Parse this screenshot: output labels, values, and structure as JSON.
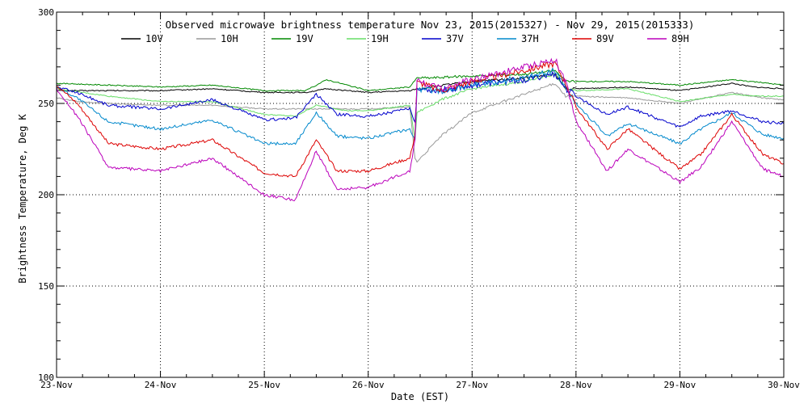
{
  "chart_data": {
    "type": "line",
    "title": "Observed microwave brightness temperature Nov 23, 2015(2015327) - Nov 29, 2015(2015333)",
    "xlabel": "Date (EST)",
    "ylabel": "Brightness Temperature, Deg K",
    "x_ticks": [
      "23-Nov",
      "24-Nov",
      "25-Nov",
      "26-Nov",
      "27-Nov",
      "28-Nov",
      "29-Nov",
      "30-Nov"
    ],
    "y_ticks": [
      100,
      150,
      200,
      250,
      300
    ],
    "xlim": [
      0,
      7
    ],
    "ylim": [
      100,
      300
    ],
    "x_units": "days since 23-Nov",
    "grid": true,
    "legend_position": "top",
    "series": [
      {
        "name": "10V",
        "color": "#000000",
        "x": [
          0,
          0.5,
          1,
          1.5,
          2,
          2.4,
          2.6,
          3,
          3.4,
          3.47,
          3.6,
          4,
          4.5,
          4.8,
          4.9,
          5,
          5.5,
          6,
          6.5,
          6.7,
          7
        ],
        "y": [
          257,
          257,
          257,
          258,
          256,
          256,
          258,
          256,
          257,
          258,
          259,
          262,
          264,
          266,
          258,
          258,
          259,
          257,
          261,
          259,
          258
        ]
      },
      {
        "name": "10H",
        "color": "#999999",
        "x": [
          0,
          0.2,
          0.5,
          1,
          1.5,
          2,
          2.5,
          3,
          3.4,
          3.45,
          3.47,
          3.7,
          4,
          4.5,
          4.8,
          4.9,
          5,
          5.5,
          6,
          6.5,
          6.8,
          7
        ],
        "y": [
          253,
          251,
          250,
          249,
          249,
          247,
          247,
          247,
          248,
          220,
          218,
          232,
          245,
          255,
          261,
          254,
          254,
          253,
          250,
          256,
          253,
          252
        ]
      },
      {
        "name": "19V",
        "color": "#008800",
        "x": [
          0,
          0.5,
          1,
          1.5,
          2,
          2.4,
          2.6,
          3,
          3.4,
          3.47,
          3.6,
          4,
          4.5,
          4.8,
          4.9,
          5,
          5.5,
          6,
          6.5,
          6.7,
          7
        ],
        "y": [
          261,
          260,
          259,
          260,
          257,
          257,
          263,
          257,
          259,
          264,
          264,
          265,
          266,
          268,
          262,
          262,
          262,
          260,
          263,
          262,
          260
        ]
      },
      {
        "name": "19H",
        "color": "#66dd66",
        "x": [
          0,
          0.5,
          1,
          1.5,
          2,
          2.3,
          2.5,
          2.8,
          3,
          3.4,
          3.45,
          3.47,
          3.7,
          4,
          4.5,
          4.8,
          4.9,
          5,
          5.5,
          6,
          6.5,
          6.7,
          7
        ],
        "y": [
          258,
          254,
          251,
          251,
          244,
          243,
          249,
          246,
          246,
          249,
          230,
          245,
          252,
          258,
          262,
          266,
          258,
          257,
          258,
          251,
          255,
          254,
          254
        ]
      },
      {
        "name": "37V",
        "color": "#0000cc",
        "x": [
          0,
          0.2,
          0.5,
          1,
          1.5,
          2,
          2.3,
          2.5,
          2.7,
          3,
          3.4,
          3.45,
          3.47,
          3.7,
          4,
          4.5,
          4.8,
          4.9,
          5,
          5.3,
          5.5,
          6,
          6.2,
          6.5,
          6.8,
          7
        ],
        "y": [
          259,
          256,
          249,
          247,
          252,
          241,
          242,
          255,
          244,
          243,
          247,
          240,
          258,
          257,
          260,
          263,
          266,
          258,
          254,
          244,
          248,
          237,
          243,
          246,
          240,
          239
        ]
      },
      {
        "name": "37H",
        "color": "#0088cc",
        "x": [
          0,
          0.2,
          0.5,
          1,
          1.5,
          2,
          2.3,
          2.5,
          2.7,
          3,
          3.4,
          3.45,
          3.47,
          3.7,
          4,
          4.5,
          4.8,
          4.9,
          5,
          5.3,
          5.5,
          6,
          6.2,
          6.5,
          6.8,
          7
        ],
        "y": [
          259,
          253,
          240,
          236,
          241,
          228,
          228,
          245,
          232,
          231,
          236,
          230,
          258,
          257,
          260,
          264,
          268,
          259,
          250,
          232,
          239,
          228,
          236,
          245,
          233,
          231
        ]
      },
      {
        "name": "89V",
        "color": "#dd0000",
        "x": [
          0,
          0.2,
          0.5,
          1,
          1.5,
          2,
          2.3,
          2.5,
          2.7,
          3,
          3.4,
          3.45,
          3.47,
          3.7,
          4,
          4.5,
          4.8,
          4.9,
          5,
          5.3,
          5.5,
          6,
          6.2,
          6.5,
          6.8,
          7
        ],
        "y": [
          260,
          250,
          228,
          225,
          230,
          212,
          210,
          230,
          213,
          213,
          220,
          233,
          262,
          257,
          262,
          268,
          272,
          261,
          248,
          225,
          236,
          214,
          222,
          244,
          222,
          217
        ]
      },
      {
        "name": "89H",
        "color": "#bb00bb",
        "x": [
          0,
          0.2,
          0.5,
          1,
          1.5,
          2,
          2.3,
          2.5,
          2.7,
          3,
          3.4,
          3.45,
          3.47,
          3.7,
          4,
          4.5,
          4.8,
          4.9,
          5,
          5.3,
          5.5,
          6,
          6.2,
          6.5,
          6.8,
          7
        ],
        "y": [
          258,
          243,
          215,
          213,
          220,
          200,
          197,
          224,
          203,
          204,
          213,
          230,
          263,
          258,
          263,
          270,
          274,
          262,
          240,
          213,
          225,
          207,
          215,
          240,
          214,
          210
        ]
      }
    ]
  }
}
